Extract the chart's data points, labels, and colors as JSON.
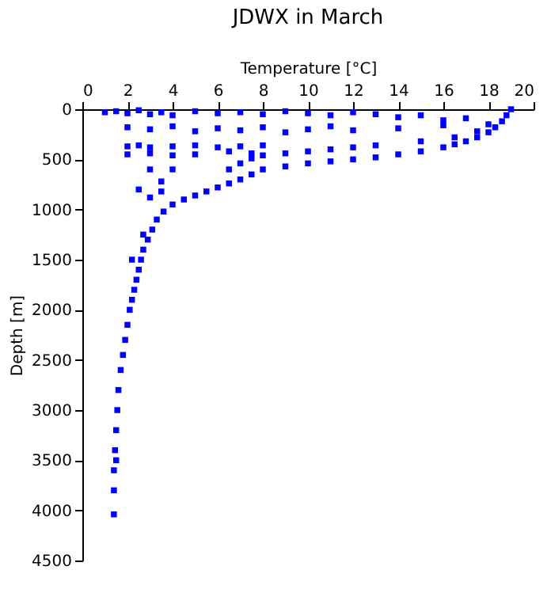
{
  "chart_data": {
    "type": "scatter",
    "title": "JDWX in March",
    "xlabel": "Temperature [°C]",
    "ylabel": "Depth [m]",
    "xlim": [
      0,
      20
    ],
    "xticks": [
      0,
      2,
      4,
      6,
      8,
      10,
      12,
      14,
      16,
      18,
      20
    ],
    "ylim": [
      4500,
      0
    ],
    "yticks": [
      0,
      500,
      1000,
      1500,
      2000,
      2500,
      3000,
      3500,
      4000,
      4500
    ],
    "grid": false,
    "marker": "square",
    "series": [
      {
        "color": "#0000ff",
        "x": [
          19.0,
          18.8,
          18.6,
          18.3,
          18.0,
          17.5,
          17.0,
          16.5,
          16.0,
          15.0,
          14.0,
          13.0,
          12.0,
          11.0,
          10.0,
          9.0,
          8.0,
          7.5,
          7.0,
          6.5,
          6.0,
          5.5,
          5.0,
          4.5,
          4.0,
          3.6,
          3.3,
          3.1,
          2.9,
          2.7,
          2.6,
          2.5,
          2.4,
          2.3,
          2.2,
          2.1,
          2.0,
          1.9,
          1.8,
          1.7,
          1.6,
          1.55,
          1.5,
          1.45,
          1.4,
          1.4,
          1.4,
          18.0,
          17.5,
          16.5,
          15.0,
          13.0,
          12.0,
          11.0,
          10.0,
          9.0,
          8.0,
          7.5,
          7.0,
          6.5,
          1.0,
          1.5,
          2.0,
          2.5,
          3.0,
          3.5,
          4.0,
          5.0,
          6.0,
          7.0,
          8.0,
          9.0,
          10.0,
          11.0,
          12.0,
          13.0,
          14.0,
          15.0,
          16.0,
          17.0,
          2.0,
          3.0,
          4.0,
          5.0,
          6.0,
          7.0,
          8.0,
          9.0,
          10.0,
          11.0,
          12.0,
          14.0,
          16.0,
          2.0,
          2.5,
          3.0,
          4.0,
          5.0,
          6.0,
          7.0,
          8.0,
          2.0,
          3.0,
          4.0,
          5.0,
          6.5,
          7.5,
          3.0,
          4.0,
          3.5,
          2.5,
          3.0,
          3.5,
          2.7,
          2.2,
          1.5
        ],
        "values": [
          0,
          60,
          120,
          180,
          230,
          280,
          320,
          350,
          380,
          420,
          450,
          480,
          500,
          520,
          540,
          570,
          600,
          650,
          700,
          740,
          780,
          820,
          860,
          900,
          950,
          1020,
          1100,
          1200,
          1300,
          1400,
          1500,
          1600,
          1700,
          1800,
          1900,
          2000,
          2150,
          2300,
          2450,
          2600,
          2800,
          3000,
          3200,
          3400,
          3600,
          3800,
          4040,
          150,
          220,
          280,
          320,
          360,
          380,
          400,
          420,
          440,
          460,
          490,
          540,
          600,
          30,
          20,
          40,
          10,
          50,
          30,
          60,
          20,
          40,
          30,
          50,
          20,
          40,
          60,
          30,
          50,
          80,
          60,
          110,
          90,
          180,
          200,
          170,
          220,
          190,
          210,
          180,
          230,
          200,
          170,
          210,
          190,
          160,
          370,
          360,
          380,
          370,
          360,
          380,
          370,
          360,
          450,
          440,
          460,
          450,
          420,
          440,
          600,
          600,
          720,
          800,
          880,
          820,
          1250,
          1500,
          3500
        ]
      }
    ]
  }
}
